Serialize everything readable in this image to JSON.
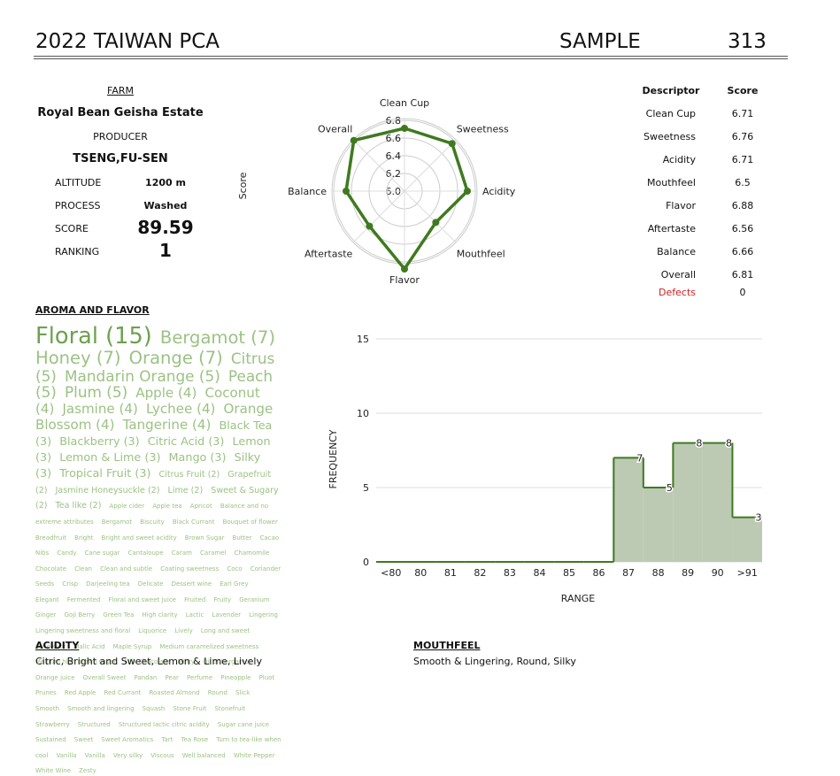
{
  "header": {
    "title": "2022 TAIWAN PCA",
    "sample_label": "SAMPLE",
    "sample_number": "313"
  },
  "info": {
    "farm_label": "FARM",
    "farm": "Royal Bean Geisha Estate",
    "producer_label": "PRODUCER",
    "producer": "TSENG,FU-SEN",
    "rows": [
      [
        "ALTITUDE",
        "1200 m"
      ],
      [
        "PROCESS",
        "Washed"
      ],
      [
        "SCORE",
        "89.59"
      ],
      [
        "RANKING",
        "1"
      ]
    ]
  },
  "descriptors": {
    "headers": [
      "Descriptor",
      "Score"
    ],
    "rows": [
      [
        "Clean Cup",
        "6.71"
      ],
      [
        "Sweetness",
        "6.76"
      ],
      [
        "Acidity",
        "6.71"
      ],
      [
        "Mouthfeel",
        "6.5"
      ],
      [
        "Flavor",
        "6.88"
      ],
      [
        "Aftertaste",
        "6.56"
      ],
      [
        "Balance",
        "6.66"
      ],
      [
        "Overall",
        "6.81"
      ]
    ],
    "defects": [
      "Defects",
      "0"
    ]
  },
  "chart_data": [
    {
      "type": "radar",
      "ylabel": "Score",
      "categories": [
        "Clean Cup",
        "Sweetness",
        "Acidity",
        "Mouthfeel",
        "Flavor",
        "Aftertaste",
        "Balance",
        "Overall"
      ],
      "values": [
        6.71,
        6.76,
        6.71,
        6.5,
        6.88,
        6.56,
        6.66,
        6.81
      ],
      "color": "#3f7a1f",
      "rlim": [
        6.0,
        6.82
      ],
      "rticks": [
        {
          "value": 6,
          "label": "6.0"
        },
        6.2,
        6.4,
        6.6,
        6.8
      ]
    },
    {
      "type": "step",
      "xlabel": "RANGE",
      "ylabel": "FREQUENCY",
      "categories": [
        "<80",
        "80",
        "81",
        "82",
        "83",
        "84",
        "85",
        "86",
        "87",
        "88",
        "89",
        "90",
        ">91"
      ],
      "values": [
        0,
        0,
        0,
        0,
        0,
        0,
        0,
        0,
        7,
        5,
        8,
        8,
        3
      ],
      "value_labels": [
        null,
        null,
        null,
        null,
        null,
        null,
        null,
        null,
        "7",
        "5",
        "8",
        "8",
        "3"
      ],
      "color": "#3f7a1f",
      "fill": "#bccab4",
      "ylim": [
        0,
        15
      ],
      "yticks": [
        0,
        5,
        10,
        15
      ],
      "grid": true
    }
  ],
  "aroma": {
    "title": "AROMA AND FLAVOR",
    "words": [
      "Floral (15)",
      "Bergamot (7)",
      "Honey (7)",
      "Orange (7)",
      "Citrus (5)",
      "Mandarin Orange (5)",
      "Peach (5)",
      "Plum (5)",
      "Apple (4)",
      "Coconut (4)",
      "Jasmine (4)",
      "Lychee (4)",
      "Orange Blossom (4)",
      "Tangerine (4)",
      "Black Tea (3)",
      "Blackberry (3)",
      "Citric Acid (3)",
      "Lemon (3)",
      "Lemon & Lime (3)",
      "Mango (3)",
      "Silky (3)",
      "Tropical Fruit (3)",
      "Citrus Fruit (2)",
      "Grapefruit (2)",
      "Jasmine Honeysuckle (2)",
      "Lime (2)",
      "Sweet & Sugary (2)",
      "Tea like (2)",
      "Apple cider",
      "Apple tea",
      "Apricot",
      "Balance and no extreme attributes",
      "Bergamot",
      "Biscuity",
      "Black Currant",
      "Bouquet of flower",
      "Breadfruit",
      "Bright",
      "Bright and sweet acidity",
      "Brown Sugar",
      "Butter",
      "Cacao Nibs",
      "Candy",
      "Cane sugar",
      "Cantaloupe",
      "Caram",
      "Caramel",
      "Chamomile",
      "Chocolate",
      "Clean",
      "Clean and subtle",
      "Coating sweetness",
      "Coco",
      "Coriander Seeds",
      "Crisp",
      "Darjeeling tea",
      "Delicate",
      "Dessert wine",
      "Earl Grey",
      "Elegant",
      "Fermented",
      "Floral and sweet juice",
      "Fruited",
      "Fruity",
      "Geranium",
      "Ginger",
      "Goji Berry",
      "Green Tea",
      "High clarity",
      "Lactic",
      "Lavender",
      "Lingering",
      "Lingering sweetness and floral",
      "Liquorice",
      "Lively",
      "Long and sweet",
      "Longevity",
      "Malic Acid",
      "Maple Syrup",
      "Medium caramelized sweetness",
      "Medium high brown sugar",
      "Milk Chocolate",
      "Minty",
      "Oil of bergamot",
      "Orange juice",
      "Overall Sweet",
      "Pandan",
      "Pear",
      "Perfume",
      "Pineapple",
      "Pluot",
      "Prunes",
      "Red Apple",
      "Red Currant",
      "Roasted Almond",
      "Round",
      "Slick",
      "Smooth",
      "Smooth and lingering",
      "Squash",
      "Stone Fruit",
      "Stonefruit",
      "Strawberry",
      "Structured",
      "Structured lactic citric acidity",
      "Sugar cane juice",
      "Sustained",
      "Sweet",
      "Sweet Aromatics",
      "Tart",
      "Tea Rose",
      "Turn to tea-like when cool",
      "Vanilla",
      "Vanilla",
      "Very silky",
      "Viscous",
      "Well balanced",
      "White Pepper",
      "White Wine",
      "Zesty"
    ]
  },
  "acidity": {
    "title": "ACIDITY",
    "text": "Citric, Bright and Sweet, Lemon & Lime, Lively"
  },
  "mouthfeel": {
    "title": "MOUTHFEEL",
    "text": "Smooth & Lingering, Round, Silky"
  }
}
